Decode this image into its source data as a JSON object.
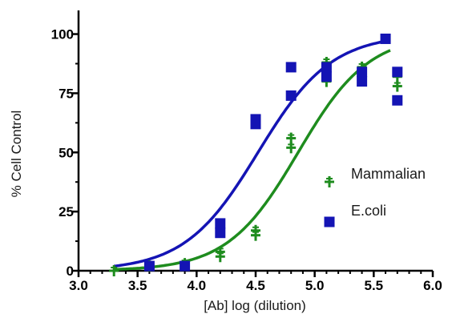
{
  "chart_data": {
    "type": "scatter",
    "xlabel": "[Ab] log (dilution)",
    "ylabel": "% Cell Control",
    "xlim": [
      3.0,
      6.0
    ],
    "ylim": [
      0,
      110
    ],
    "x_ticks": [
      "3.0",
      "3.5",
      "4.0",
      "4.5",
      "5.0",
      "5.5",
      "6.0"
    ],
    "y_ticks": [
      "0",
      "25",
      "50",
      "75",
      "100"
    ],
    "legend_position": "right",
    "series": [
      {
        "name": "Mammalian",
        "color": "#1e8c1e",
        "marker": "cross",
        "points": [
          [
            3.3,
            0
          ],
          [
            3.6,
            2
          ],
          [
            3.9,
            3
          ],
          [
            4.2,
            6
          ],
          [
            4.2,
            8
          ],
          [
            4.5,
            15
          ],
          [
            4.5,
            17
          ],
          [
            4.8,
            52
          ],
          [
            4.8,
            56
          ],
          [
            5.1,
            80
          ],
          [
            5.1,
            88
          ],
          [
            5.4,
            82
          ],
          [
            5.4,
            86
          ],
          [
            5.7,
            78
          ],
          [
            5.7,
            82
          ]
        ],
        "fit": {
          "bottom": 0,
          "top": 100,
          "log_ec50": 4.86,
          "hill_slope": 1.45
        }
      },
      {
        "name": "E.coli",
        "color": "#1414b4",
        "marker": "square",
        "points": [
          [
            3.6,
            2
          ],
          [
            3.9,
            2
          ],
          [
            4.2,
            16
          ],
          [
            4.2,
            20
          ],
          [
            4.5,
            62
          ],
          [
            4.5,
            64
          ],
          [
            4.8,
            74
          ],
          [
            4.8,
            86
          ],
          [
            5.1,
            82
          ],
          [
            5.1,
            86
          ],
          [
            5.4,
            80
          ],
          [
            5.4,
            84
          ],
          [
            5.6,
            98
          ],
          [
            5.7,
            72
          ],
          [
            5.7,
            84
          ]
        ],
        "fit": {
          "bottom": 0,
          "top": 100,
          "log_ec50": 4.52,
          "hill_slope": 1.4
        }
      }
    ]
  }
}
